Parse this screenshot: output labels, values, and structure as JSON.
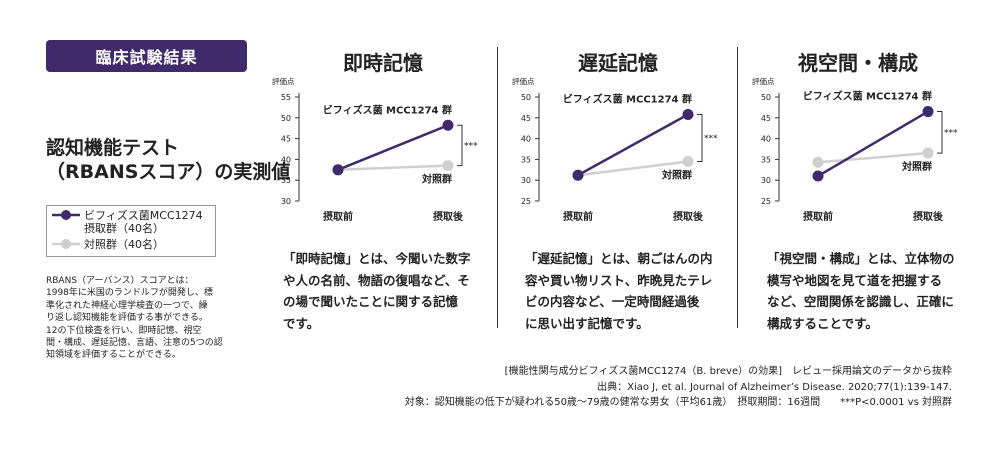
{
  "badge": "臨床試験結果",
  "left_title_line1": "認知機能テスト",
  "left_title_line2": "（RBANSスコア）の実測値",
  "legend": {
    "item1_line1": "ビフィズス菌MCC1274",
    "item1_line2": "摂取群（40名）",
    "item2": "対照群（40名）"
  },
  "rbans_note": [
    "RBANS（アーバンス）スコアとは：",
    "1998年に米国のランドルフが開発し、標",
    "準化された神経心理学検査の一つで、繰",
    "り返し認知機能を評価する事ができる。",
    "12の下位検査を行い、即時記憶、視空",
    "間・構成、遅延記憶、言語、注意の5つの認",
    "知領域を評価することができる。"
  ],
  "colors": {
    "treatment": "#3f2a6b",
    "control": "#cfcfcf",
    "badge": "#3f2a6b"
  },
  "chart_data": [
    {
      "type": "line",
      "title": "即時記憶",
      "ylabel": "評価点",
      "yticks": [
        30,
        35,
        40,
        45,
        50,
        55
      ],
      "ylim": [
        30,
        55
      ],
      "categories": [
        "摂取前",
        "摂取後"
      ],
      "series": [
        {
          "name": "ビフィズス菌 MCC1274 群",
          "values": [
            37.5,
            48.2
          ]
        },
        {
          "name": "対照群",
          "values": [
            37.5,
            38.5
          ]
        }
      ],
      "significance": "***",
      "description": [
        "「即時記憶」とは、今聞いた数字",
        "や人の名前、物語の復唱など、そ",
        "の場で聞いたことに関する記憶",
        "です。"
      ]
    },
    {
      "type": "line",
      "title": "遅延記憶",
      "ylabel": "評価点",
      "yticks": [
        25,
        30,
        35,
        40,
        45,
        50
      ],
      "ylim": [
        25,
        50
      ],
      "categories": [
        "摂取前",
        "摂取後"
      ],
      "series": [
        {
          "name": "ビフィズス菌 MCC1274 群",
          "values": [
            31.2,
            45.8
          ]
        },
        {
          "name": "対照群",
          "values": [
            31.2,
            34.5
          ]
        }
      ],
      "significance": "***",
      "description": [
        "「遅延記憶」とは、朝ごはんの内",
        "容や買い物リスト、昨晩見たテレ",
        "ビの内容など、一定時間経過後",
        "に思い出す記憶です。"
      ]
    },
    {
      "type": "line",
      "title": "視空間・構成",
      "ylabel": "評価点",
      "yticks": [
        25,
        30,
        35,
        40,
        45,
        50
      ],
      "ylim": [
        25,
        50
      ],
      "categories": [
        "摂取前",
        "摂取後"
      ],
      "series": [
        {
          "name": "ビフィズス菌 MCC1274 群",
          "values": [
            31.0,
            46.5
          ]
        },
        {
          "name": "対照群",
          "values": [
            34.3,
            36.5
          ]
        }
      ],
      "significance": "***",
      "description": [
        "「視空間・構成」とは、立体物の",
        "模写や地図を見て道を把握する",
        "など、空間関係を認識し、正確に",
        "構成することです。"
      ]
    }
  ],
  "footer": {
    "line1": "[機能性関与成分ビフィズス菌MCC1274（B. breve）の効果]　レビュー採用論文のデータから抜粋",
    "line2": "出典：Xiao J, et al. Journal of Alzheimer’s Disease. 2020;77(1):139-147.",
    "line3": "対象：認知機能の低下が疑われる50歳～79歳の健常な男女（平均61歳）　摂取期間：16週間　　***P<0.0001 vs 対照群"
  }
}
